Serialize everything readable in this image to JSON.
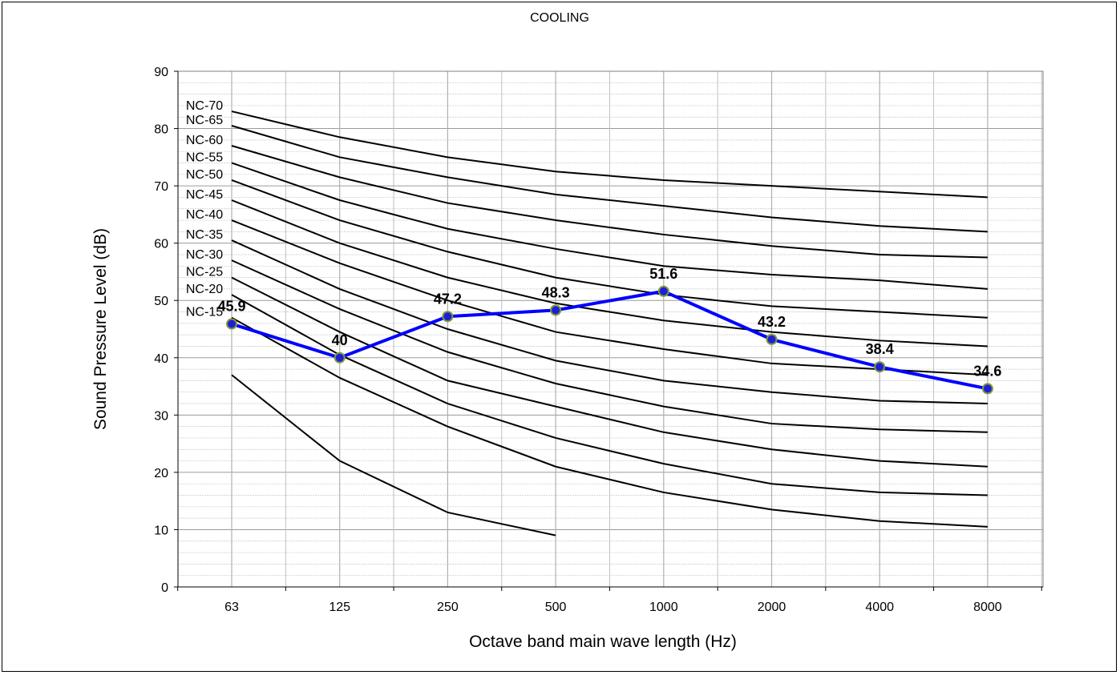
{
  "chart_data": {
    "type": "line",
    "title": "COOLING",
    "xlabel": "Octave band main wave length (Hz)",
    "ylabel": "Sound Pressure  Level (dB)",
    "categories": [
      "63",
      "125",
      "250",
      "500",
      "1000",
      "2000",
      "4000",
      "8000"
    ],
    "ylim": [
      0,
      90
    ],
    "yticks": [
      0,
      10,
      20,
      30,
      40,
      50,
      60,
      70,
      80,
      90
    ],
    "grid": true,
    "series": [
      {
        "name": "NC-70",
        "values": [
          83,
          78.5,
          75,
          72.5,
          71,
          70,
          69,
          68
        ]
      },
      {
        "name": "NC-65",
        "values": [
          80.5,
          75,
          71.5,
          68.5,
          66.5,
          64.5,
          63,
          62
        ]
      },
      {
        "name": "NC-60",
        "values": [
          77,
          71.5,
          67,
          64,
          61.5,
          59.5,
          58,
          57.5
        ]
      },
      {
        "name": "NC-55",
        "values": [
          74,
          67.5,
          62.5,
          59,
          56,
          54.5,
          53.5,
          52
        ]
      },
      {
        "name": "NC-50",
        "values": [
          71,
          64,
          58.5,
          54,
          51,
          49,
          48,
          47
        ]
      },
      {
        "name": "NC-45",
        "values": [
          67.5,
          60,
          54,
          49.5,
          46.5,
          44.5,
          43,
          42
        ]
      },
      {
        "name": "NC-40",
        "values": [
          64,
          56.5,
          50,
          44.5,
          41.5,
          39,
          38,
          37
        ]
      },
      {
        "name": "NC-35",
        "values": [
          60.5,
          52,
          45,
          39.5,
          36,
          34,
          32.5,
          32
        ]
      },
      {
        "name": "NC-30",
        "values": [
          57,
          48.5,
          41,
          35.5,
          31.5,
          28.5,
          27.5,
          27
        ]
      },
      {
        "name": "NC-25",
        "values": [
          54,
          44.5,
          36,
          31.5,
          27,
          24,
          22,
          21
        ]
      },
      {
        "name": "NC-20",
        "values": [
          51,
          40.5,
          32,
          26,
          21.5,
          18,
          16.5,
          16
        ]
      },
      {
        "name": "NC-15",
        "values": [
          47,
          36.5,
          28,
          21,
          16.5,
          13.5,
          11.5,
          10.5
        ]
      },
      {
        "name": "",
        "values": [
          37,
          22,
          13,
          9,
          null,
          null,
          null,
          null
        ]
      }
    ],
    "measured": {
      "values": [
        45.9,
        40,
        47.2,
        48.3,
        51.6,
        43.2,
        38.4,
        34.6
      ],
      "labels": [
        "45.9",
        "40",
        "47.2",
        "48.3",
        "51.6",
        "43.2",
        "38.4",
        "34.6"
      ],
      "color": "#0000ff",
      "marker_fill": "#1f1fd6",
      "marker_edge": "#7a9a3a"
    },
    "nc_curve_color": "#000000"
  }
}
